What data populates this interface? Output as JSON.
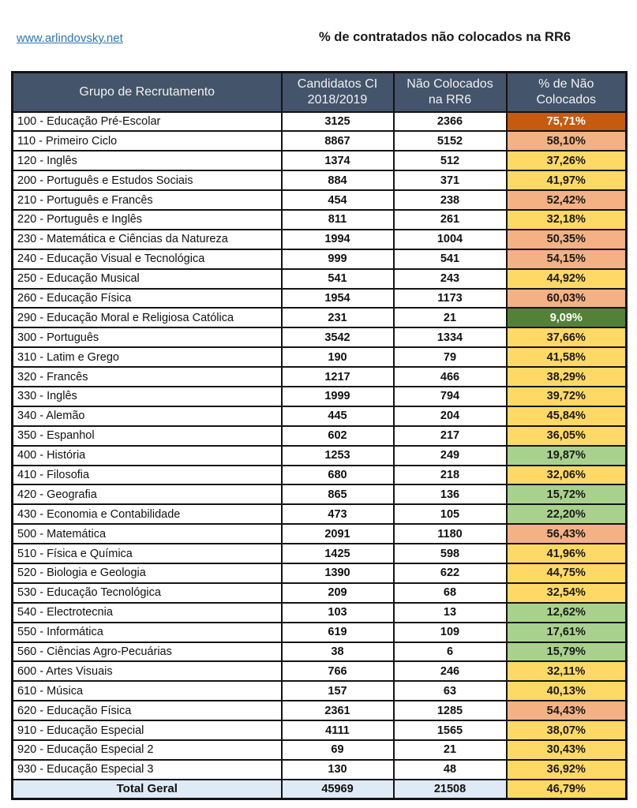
{
  "page": {
    "link": "www.arlindovsky.net",
    "title": "% de contratados não colocados na RR6"
  },
  "table": {
    "headers": {
      "group": "Grupo de Recrutamento",
      "candidates": "Candidatos CI 2018/2019",
      "not_placed": "Não Colocados na RR6",
      "percent": "% de Não Colocados"
    },
    "rows": [
      {
        "group": "100 - Educação Pré-Escolar",
        "candidates": "3125",
        "not_placed": "2366",
        "percent": "75,71%",
        "color": "orange_dark"
      },
      {
        "group": "110 - Primeiro Ciclo",
        "candidates": "8867",
        "not_placed": "5152",
        "percent": "58,10%",
        "color": "salmon"
      },
      {
        "group": "120 - Inglês",
        "candidates": "1374",
        "not_placed": "512",
        "percent": "37,26%",
        "color": "yellow"
      },
      {
        "group": "200 - Português e Estudos Sociais",
        "candidates": "884",
        "not_placed": "371",
        "percent": "41,97%",
        "color": "yellow"
      },
      {
        "group": "210 - Português e Francês",
        "candidates": "454",
        "not_placed": "238",
        "percent": "52,42%",
        "color": "salmon"
      },
      {
        "group": "220 - Português e Inglês",
        "candidates": "811",
        "not_placed": "261",
        "percent": "32,18%",
        "color": "yellow"
      },
      {
        "group": "230 - Matemática e Ciências da Natureza",
        "candidates": "1994",
        "not_placed": "1004",
        "percent": "50,35%",
        "color": "salmon"
      },
      {
        "group": "240 - Educação Visual e Tecnológica",
        "candidates": "999",
        "not_placed": "541",
        "percent": "54,15%",
        "color": "salmon"
      },
      {
        "group": "250 - Educação Musical",
        "candidates": "541",
        "not_placed": "243",
        "percent": "44,92%",
        "color": "yellow"
      },
      {
        "group": "260 - Educação Física",
        "candidates": "1954",
        "not_placed": "1173",
        "percent": "60,03%",
        "color": "salmon"
      },
      {
        "group": "290 - Educação Moral e Religiosa Católica",
        "candidates": "231",
        "not_placed": "21",
        "percent": "9,09%",
        "color": "green_dark"
      },
      {
        "group": "300 - Português",
        "candidates": "3542",
        "not_placed": "1334",
        "percent": "37,66%",
        "color": "yellow"
      },
      {
        "group": "310 - Latim e Grego",
        "candidates": "190",
        "not_placed": "79",
        "percent": "41,58%",
        "color": "yellow"
      },
      {
        "group": "320 - Francês",
        "candidates": "1217",
        "not_placed": "466",
        "percent": "38,29%",
        "color": "yellow"
      },
      {
        "group": "330 - Inglês",
        "candidates": "1999",
        "not_placed": "794",
        "percent": "39,72%",
        "color": "yellow"
      },
      {
        "group": "340 - Alemão",
        "candidates": "445",
        "not_placed": "204",
        "percent": "45,84%",
        "color": "yellow"
      },
      {
        "group": "350 - Espanhol",
        "candidates": "602",
        "not_placed": "217",
        "percent": "36,05%",
        "color": "yellow"
      },
      {
        "group": "400 - História",
        "candidates": "1253",
        "not_placed": "249",
        "percent": "19,87%",
        "color": "green_light"
      },
      {
        "group": "410 - Filosofia",
        "candidates": "680",
        "not_placed": "218",
        "percent": "32,06%",
        "color": "yellow"
      },
      {
        "group": "420 - Geografia",
        "candidates": "865",
        "not_placed": "136",
        "percent": "15,72%",
        "color": "green_light"
      },
      {
        "group": "430 - Economia  e Contabilidade",
        "candidates": "473",
        "not_placed": "105",
        "percent": "22,20%",
        "color": "green_light"
      },
      {
        "group": "500 - Matemática",
        "candidates": "2091",
        "not_placed": "1180",
        "percent": "56,43%",
        "color": "salmon"
      },
      {
        "group": "510 - Física e Química",
        "candidates": "1425",
        "not_placed": "598",
        "percent": "41,96%",
        "color": "yellow"
      },
      {
        "group": "520 - Biologia e Geologia",
        "candidates": "1390",
        "not_placed": "622",
        "percent": "44,75%",
        "color": "yellow"
      },
      {
        "group": "530 - Educação Tecnológica",
        "candidates": "209",
        "not_placed": "68",
        "percent": "32,54%",
        "color": "yellow"
      },
      {
        "group": "540 - Electrotecnia",
        "candidates": "103",
        "not_placed": "13",
        "percent": "12,62%",
        "color": "green_light"
      },
      {
        "group": "550 - Informática",
        "candidates": "619",
        "not_placed": "109",
        "percent": "17,61%",
        "color": "green_light"
      },
      {
        "group": "560 - Ciências Agro-Pecuárias",
        "candidates": "38",
        "not_placed": "6",
        "percent": "15,79%",
        "color": "green_light"
      },
      {
        "group": "600 - Artes Visuais",
        "candidates": "766",
        "not_placed": "246",
        "percent": "32,11%",
        "color": "yellow"
      },
      {
        "group": "610 - Música",
        "candidates": "157",
        "not_placed": "63",
        "percent": "40,13%",
        "color": "yellow"
      },
      {
        "group": "620 - Educação Física",
        "candidates": "2361",
        "not_placed": "1285",
        "percent": "54,43%",
        "color": "salmon"
      },
      {
        "group": "910 - Educação Especial",
        "candidates": "4111",
        "not_placed": "1565",
        "percent": "38,07%",
        "color": "yellow"
      },
      {
        "group": "920 - Educação Especial 2",
        "candidates": "69",
        "not_placed": "21",
        "percent": "30,43%",
        "color": "yellow"
      },
      {
        "group": "930 - Educação Especial 3",
        "candidates": "130",
        "not_placed": "48",
        "percent": "36,92%",
        "color": "yellow"
      }
    ],
    "total": {
      "label": "Total Geral",
      "candidates": "45969",
      "not_placed": "21508",
      "percent": "46,79%",
      "color": "yellow"
    }
  },
  "colors": {
    "header_bg": "#44546A",
    "header_text": "#F2F2F2",
    "total_bg": "#DEEAF6",
    "link": "#2E74B5",
    "scale": {
      "orange_dark": {
        "bg": "#C55A11",
        "text": "#FFFFFF"
      },
      "salmon": {
        "bg": "#F4B183",
        "text": "#1A1A1A"
      },
      "yellow": {
        "bg": "#FFD966",
        "text": "#1A1A1A"
      },
      "green_light": {
        "bg": "#A9D18E",
        "text": "#1A1A1A"
      },
      "green_dark": {
        "bg": "#538135",
        "text": "#FFFFFF"
      }
    }
  }
}
